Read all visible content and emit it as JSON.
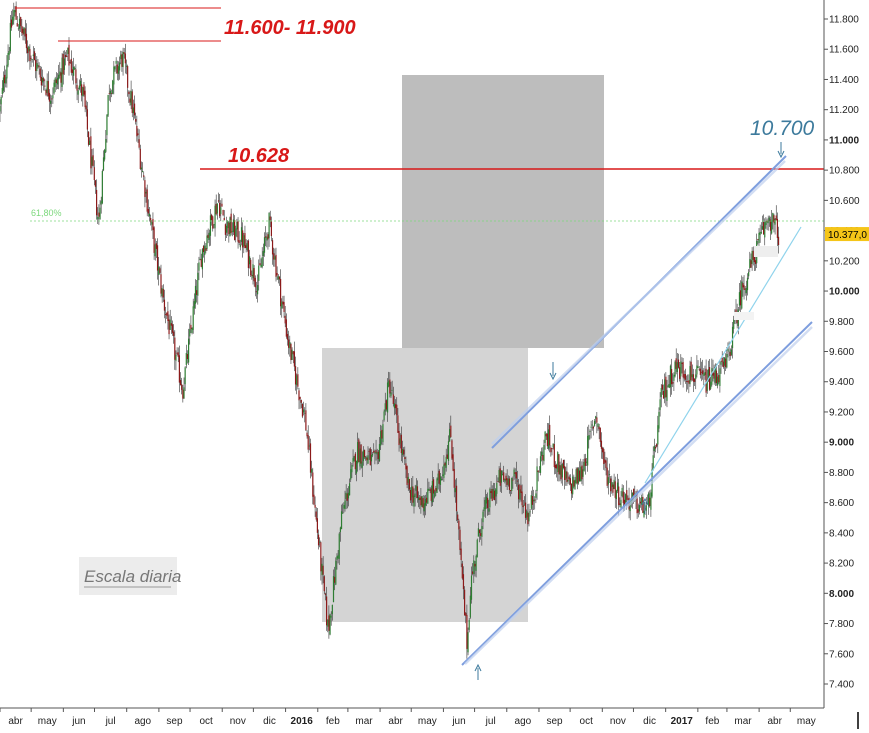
{
  "chart_data": {
    "type": "candlestick",
    "y_axis": {
      "ticks": [
        "7.400",
        "7.600",
        "7.800",
        "8.000",
        "8.200",
        "8.400",
        "8.600",
        "8.800",
        "9.000",
        "9.200",
        "9.400",
        "9.600",
        "9.800",
        "10.000",
        "10.200",
        "10.400",
        "10.600",
        "10.800",
        "11.000",
        "11.200",
        "11.400",
        "11.600",
        "11.800"
      ],
      "tick_values": [
        7400,
        7600,
        7800,
        8000,
        8200,
        8400,
        8600,
        8800,
        9000,
        9200,
        9400,
        9600,
        9800,
        10000,
        10200,
        10400,
        10600,
        10800,
        11000,
        11200,
        11400,
        11600,
        11800
      ],
      "bold_ticks": [
        8000,
        9000,
        10000,
        11000
      ],
      "range": [
        7300,
        11900
      ],
      "position": "right"
    },
    "x_axis": {
      "labels": [
        "abr",
        "may",
        "jun",
        "jul",
        "ago",
        "sep",
        "oct",
        "nov",
        "dic",
        "2016",
        "feb",
        "mar",
        "abr",
        "may",
        "jun",
        "jul",
        "ago",
        "sep",
        "oct",
        "nov",
        "dic",
        "2017",
        "feb",
        "mar",
        "abr",
        "may"
      ],
      "bold_labels": [
        "2016",
        "2017"
      ],
      "start": "2015-04-01",
      "end": "2017-05-20"
    },
    "current_price": {
      "label": "10.377,0",
      "value": 10377
    },
    "annotations": {
      "resistance_band_label": "11.600- 11.900",
      "resistance_band_values": [
        11600,
        11900
      ],
      "resistance_line_label": "10.628",
      "resistance_line_value": 10628,
      "target_label": "10.700",
      "fib_label": "61,80%",
      "fib_value": 10230,
      "scale_label": "Escala diaria"
    },
    "key_points": {
      "dates": [
        "2015-04-01",
        "2015-04-14",
        "2015-05-05",
        "2015-05-20",
        "2015-06-05",
        "2015-06-20",
        "2015-07-05",
        "2015-07-15",
        "2015-07-28",
        "2015-08-07",
        "2015-08-24",
        "2015-09-05",
        "2015-09-24",
        "2015-10-12",
        "2015-10-28",
        "2015-11-04",
        "2015-11-20",
        "2015-12-05",
        "2015-12-16",
        "2016-01-04",
        "2016-01-20",
        "2016-02-11",
        "2016-02-24",
        "2016-03-10",
        "2016-03-28",
        "2016-04-10",
        "2016-04-28",
        "2016-05-10",
        "2016-05-26",
        "2016-06-08",
        "2016-06-24",
        "2016-06-27",
        "2016-07-08",
        "2016-07-25",
        "2016-08-10",
        "2016-08-22",
        "2016-09-08",
        "2016-09-16",
        "2016-09-30",
        "2016-10-12",
        "2016-10-26",
        "2016-11-04",
        "2016-11-18",
        "2016-12-01",
        "2016-12-15",
        "2016-12-28",
        "2017-01-10",
        "2017-01-25",
        "2017-02-10",
        "2017-02-28",
        "2017-03-15",
        "2017-03-31",
        "2017-04-10",
        "2017-04-20"
      ],
      "closes": [
        11200,
        11850,
        11500,
        11300,
        11550,
        11300,
        10450,
        11350,
        11550,
        11200,
        10450,
        9950,
        9350,
        10250,
        10600,
        10450,
        10350,
        10050,
        10450,
        9650,
        9150,
        7750,
        8500,
        8950,
        8850,
        9400,
        8700,
        8600,
        8700,
        9050,
        7650,
        8050,
        8500,
        8750,
        8750,
        8500,
        9050,
        8900,
        8700,
        8800,
        9200,
        8800,
        8650,
        8600,
        8550,
        9300,
        9500,
        9450,
        9400,
        9500,
        10000,
        10300,
        10500,
        10377
      ]
    },
    "grid": false,
    "legend": "none"
  }
}
